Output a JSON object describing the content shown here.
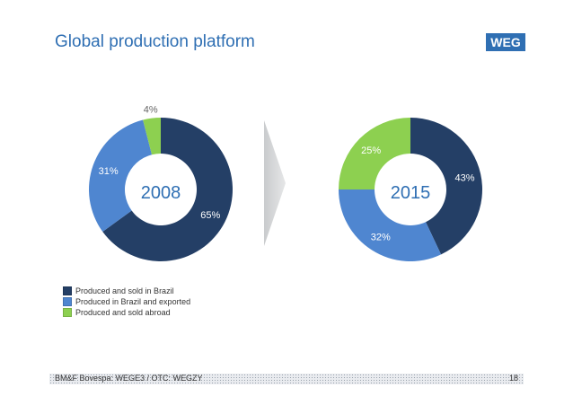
{
  "title": "Global production platform",
  "logo_text": "WEG",
  "footer": {
    "text": "BM&F Bovespa: WEGE3 / OTC: WEGZY",
    "page": "18"
  },
  "colors": {
    "dark": "#243f66",
    "blue": "#4f86d0",
    "green": "#8dd050",
    "title": "#2f6fb3"
  },
  "chart_data": [
    {
      "type": "pie",
      "title": "2008",
      "categories": [
        "Produced and sold in Brazil",
        "Produced in Brazil and exported",
        "Produced and sold abroad"
      ],
      "values": [
        65,
        31,
        4
      ],
      "labels": [
        "65%",
        "31%",
        "4%"
      ]
    },
    {
      "type": "pie",
      "title": "2015",
      "categories": [
        "Produced and sold in Brazil",
        "Produced in Brazil and exported",
        "Produced and sold abroad"
      ],
      "values": [
        43,
        32,
        25
      ],
      "labels": [
        "43%",
        "32%",
        "25%"
      ]
    }
  ],
  "legend": [
    {
      "label": "Produced and sold in Brazil",
      "color": "#243f66"
    },
    {
      "label": "Produced in Brazil and exported",
      "color": "#4f86d0"
    },
    {
      "label": "Produced and sold abroad",
      "color": "#8dd050"
    }
  ]
}
